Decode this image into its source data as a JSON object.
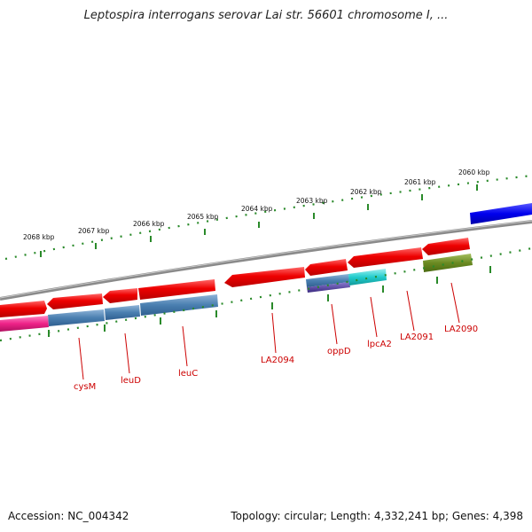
{
  "title": "Leptospira interrogans serovar Lai str. 56601 chromosome I, ...",
  "footer": {
    "accession": "Accession: NC_004342",
    "summary": "Topology: circular; Length: 4,332,241 bp; Genes: 4,398"
  },
  "scale_ticks": [
    "2060 kbp",
    "2061 kbp",
    "2062 kbp",
    "2063 kbp",
    "2064 kbp",
    "2065 kbp",
    "2066 kbp",
    "2067 kbp",
    "2068 kbp"
  ],
  "gene_labels": [
    "cysM",
    "leuD",
    "leuC",
    "LA2094",
    "oppD",
    "lpcA2",
    "LA2091",
    "LA2090"
  ],
  "colors": {
    "backbone": "#8a8a8a",
    "cds": "#ee0000",
    "tick": "#2a8a2a",
    "label": "#cc0000",
    "rna_blue": "#4a7fb0",
    "cyan": "#22cccc",
    "olive": "#6a8a22",
    "magenta": "#ee2288",
    "violet": "#5544a0",
    "bright_blue": "#0000ee"
  }
}
